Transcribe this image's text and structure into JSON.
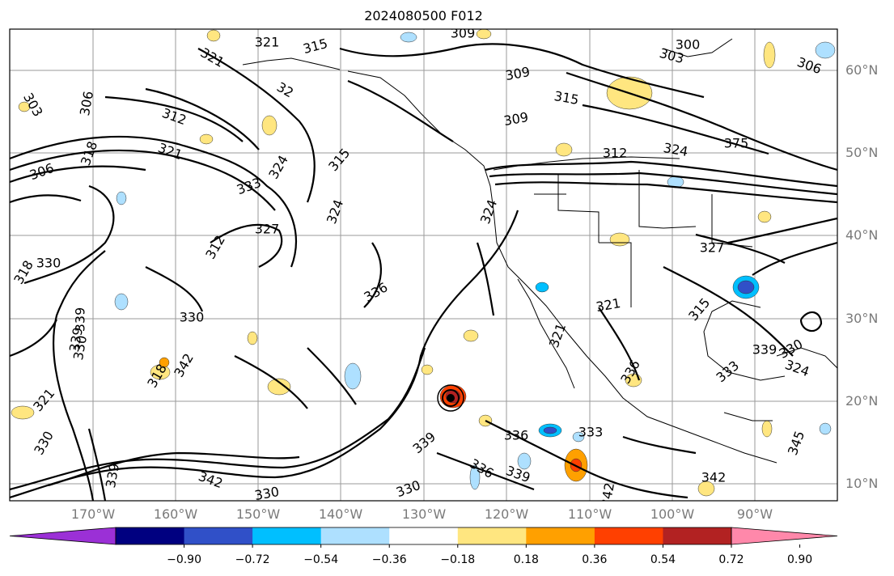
{
  "title": "2024080500 F012",
  "lat_labels": [
    "60°N",
    "50°N",
    "40°N",
    "30°N",
    "20°N",
    "10°N"
  ],
  "lon_labels": [
    "170°W",
    "160°W",
    "150°W",
    "140°W",
    "130°W",
    "120°W",
    "110°W",
    "100°W",
    "90°W"
  ],
  "colorbar": {
    "ticks": [
      "−0.90",
      "−0.72",
      "−0.54",
      "−0.36",
      "−0.18",
      "0.18",
      "0.36",
      "0.54",
      "0.72",
      "0.90"
    ],
    "colors": [
      "#9b30d6",
      "#000080",
      "#3050c8",
      "#00bfff",
      "#aee0ff",
      "#ffffff",
      "#ffe680",
      "#ffa000",
      "#ff4000",
      "#b22222",
      "#ff88aa"
    ]
  },
  "contour_labels": [
    "321",
    "315",
    "309",
    "300",
    "303",
    "306",
    "309",
    "321",
    "32",
    "312",
    "303",
    "306",
    "309",
    "315",
    "312",
    "324",
    "375",
    "306",
    "318",
    "333",
    "324",
    "315",
    "324",
    "327",
    "318",
    "330",
    "312",
    "327",
    "336",
    "330",
    "321",
    "315",
    "342",
    "321",
    "339",
    "330",
    "321",
    "333",
    "324",
    "339",
    "330",
    "333",
    "330",
    "336",
    "336",
    "339",
    "342",
    "342",
    "330",
    "336",
    "339",
    "342",
    "345",
    "339",
    "339",
    "330",
    "321",
    "318",
    "324"
  ]
}
